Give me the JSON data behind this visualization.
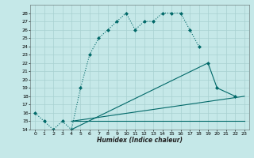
{
  "xlabel": "Humidex (Indice chaleur)",
  "bg_color": "#c5e8e8",
  "grid_color": "#a8d0d0",
  "line_color": "#006868",
  "xlim": [
    -0.5,
    23.5
  ],
  "ylim": [
    14,
    29
  ],
  "xticks": [
    0,
    1,
    2,
    3,
    4,
    5,
    6,
    7,
    8,
    9,
    10,
    11,
    12,
    13,
    14,
    15,
    16,
    17,
    18,
    19,
    20,
    21,
    22,
    23
  ],
  "yticks": [
    14,
    15,
    16,
    17,
    18,
    19,
    20,
    21,
    22,
    23,
    24,
    25,
    26,
    27,
    28
  ],
  "line1_x": [
    0,
    1,
    2,
    3,
    4,
    5,
    6,
    7,
    8,
    9,
    10,
    11,
    12,
    13,
    14,
    15,
    16,
    17,
    18
  ],
  "line1_y": [
    16,
    15,
    14,
    15,
    14,
    19,
    23,
    25,
    26,
    27,
    28,
    26,
    27,
    27,
    28,
    28,
    28,
    26,
    24
  ],
  "line2_x": [
    4,
    19,
    20,
    22
  ],
  "line2_y": [
    14,
    22,
    19,
    18
  ],
  "line3_x": [
    4,
    23
  ],
  "line3_y": [
    15,
    18
  ],
  "line4_x": [
    4,
    23
  ],
  "line4_y": [
    15,
    15
  ]
}
